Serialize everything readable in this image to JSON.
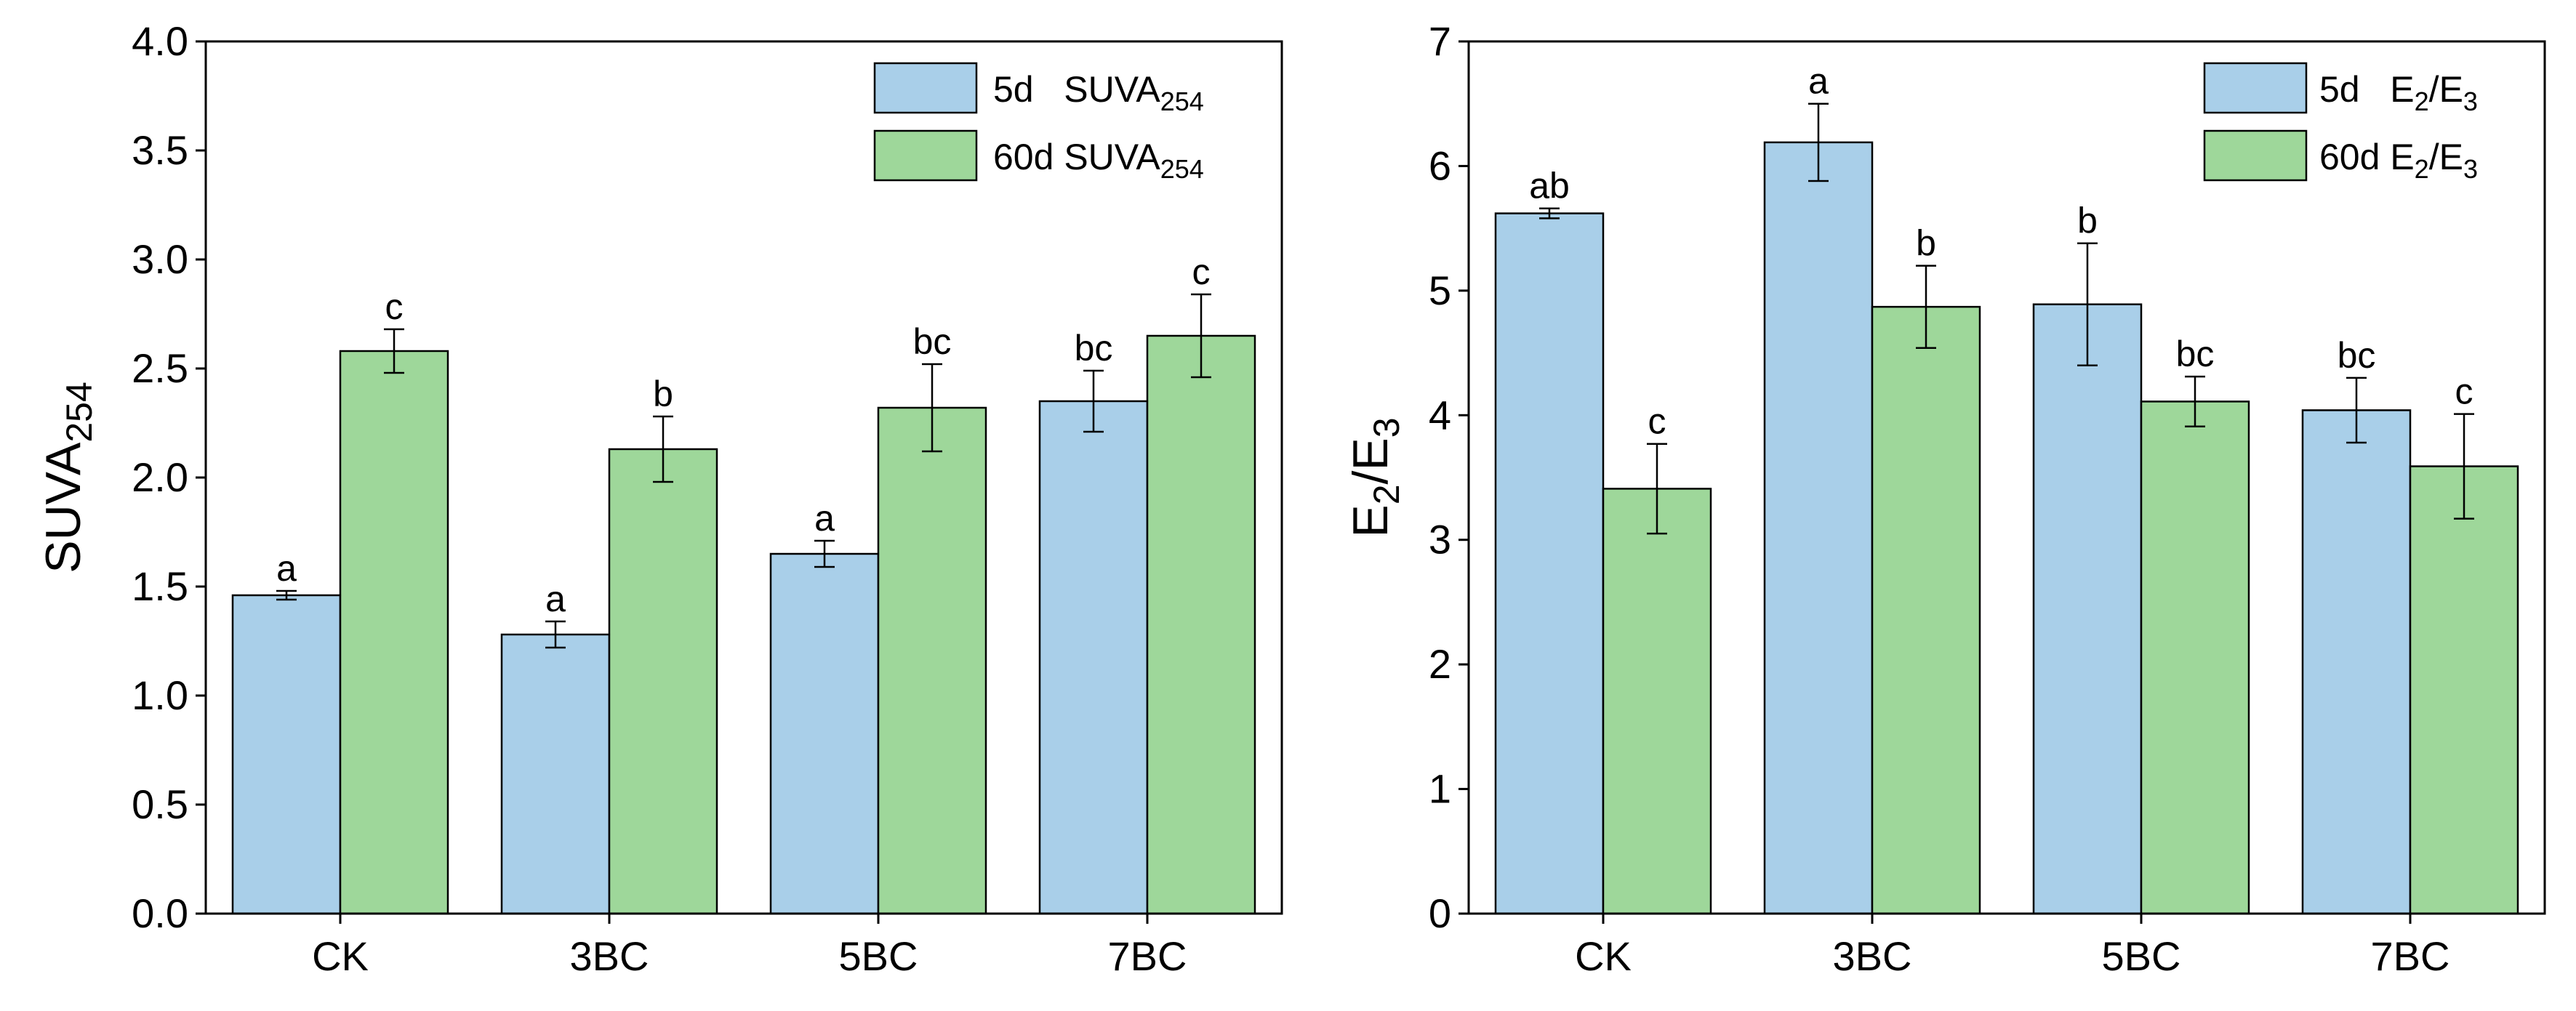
{
  "colors": {
    "series_5d": "#a9cfe9",
    "series_60d": "#9ed79a",
    "stroke": "#000000"
  },
  "chart_data": [
    {
      "type": "bar",
      "categories": [
        "CK",
        "3BC",
        "5BC",
        "7BC"
      ],
      "ylabel": {
        "main": "SUVA",
        "sub": "254"
      },
      "ylim": [
        0,
        4.0
      ],
      "yticks": [
        0.0,
        0.5,
        1.0,
        1.5,
        2.0,
        2.5,
        3.0,
        3.5,
        4.0
      ],
      "ytick_labels": [
        "0.0",
        "0.5",
        "1.0",
        "1.5",
        "2.0",
        "2.5",
        "3.0",
        "3.5",
        "4.0"
      ],
      "grid": false,
      "legend_position": "top-right",
      "series": [
        {
          "name": "5d   SUVA254",
          "legend": {
            "prefix": "5d   SUVA",
            "sub": "254"
          },
          "values": [
            1.46,
            1.28,
            1.65,
            2.35
          ],
          "errors": [
            0.02,
            0.06,
            0.06,
            0.14
          ],
          "sig_labels": [
            "a",
            "a",
            "a",
            "bc"
          ]
        },
        {
          "name": "60d SUVA254",
          "legend": {
            "prefix": "60d SUVA",
            "sub": "254"
          },
          "values": [
            2.58,
            2.13,
            2.32,
            2.65
          ],
          "errors": [
            0.1,
            0.15,
            0.2,
            0.19
          ],
          "sig_labels": [
            "c",
            "b",
            "bc",
            "c"
          ]
        }
      ]
    },
    {
      "type": "bar",
      "categories": [
        "CK",
        "3BC",
        "5BC",
        "7BC"
      ],
      "ylabel": {
        "main1": "E",
        "sub1": "2",
        "main2": "/E",
        "sub2": "3"
      },
      "ylim": [
        0,
        7
      ],
      "yticks": [
        0,
        1,
        2,
        3,
        4,
        5,
        6,
        7
      ],
      "ytick_labels": [
        "0",
        "1",
        "2",
        "3",
        "4",
        "5",
        "6",
        "7"
      ],
      "grid": false,
      "legend_position": "top-right",
      "series": [
        {
          "name": "5d   E2/E3",
          "legend": {
            "prefix": "5d   E",
            "sub1": "2",
            "mid": "/E",
            "sub2": "3"
          },
          "values": [
            5.62,
            6.19,
            4.89,
            4.04
          ],
          "errors": [
            0.04,
            0.31,
            0.49,
            0.26
          ],
          "sig_labels": [
            "ab",
            "a",
            "b",
            "bc"
          ]
        },
        {
          "name": "60d E2/E3",
          "legend": {
            "prefix": "60d E",
            "sub1": "2",
            "mid": "/E",
            "sub2": "3"
          },
          "values": [
            3.41,
            4.87,
            4.11,
            3.59
          ],
          "errors": [
            0.36,
            0.33,
            0.2,
            0.42
          ],
          "sig_labels": [
            "c",
            "b",
            "bc",
            "c"
          ]
        }
      ]
    }
  ]
}
